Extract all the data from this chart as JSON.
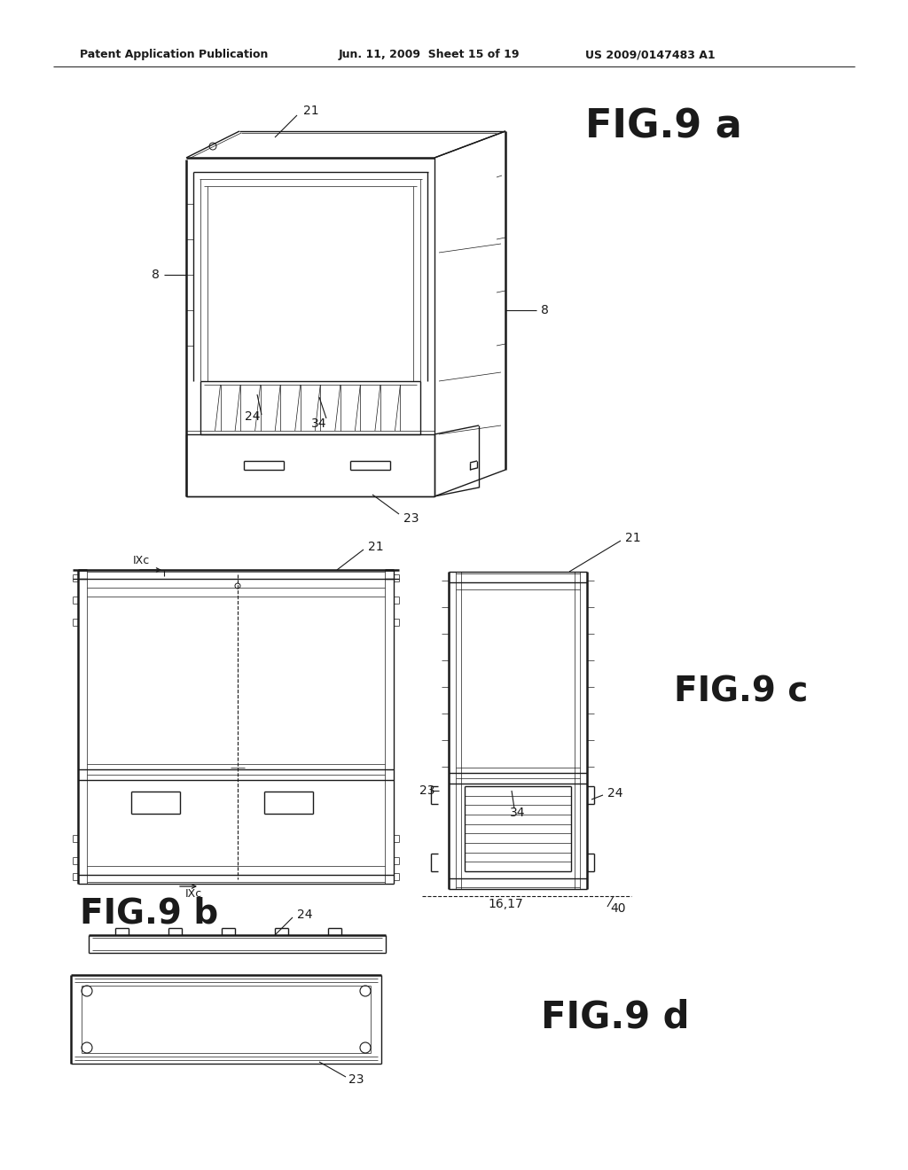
{
  "bg_color": "#ffffff",
  "header_left": "Patent Application Publication",
  "header_mid": "Jun. 11, 2009  Sheet 15 of 19",
  "header_right": "US 2009/0147483 A1",
  "fig9a_label": "FIG.9 a",
  "fig9b_label": "FIG.9 b",
  "fig9c_label": "FIG.9 c",
  "fig9d_label": "FIG.9 d",
  "line_color": "#1a1a1a",
  "lw": 1.0,
  "tlw": 0.5,
  "thw": 1.8
}
